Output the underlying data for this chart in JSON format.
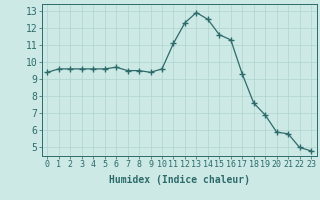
{
  "x": [
    0,
    1,
    2,
    3,
    4,
    5,
    6,
    7,
    8,
    9,
    10,
    11,
    12,
    13,
    14,
    15,
    16,
    17,
    18,
    19,
    20,
    21,
    22,
    23
  ],
  "y": [
    9.4,
    9.6,
    9.6,
    9.6,
    9.6,
    9.6,
    9.7,
    9.5,
    9.5,
    9.4,
    9.6,
    11.1,
    12.3,
    12.9,
    12.5,
    11.6,
    11.3,
    9.3,
    7.6,
    6.9,
    5.9,
    5.8,
    5.0,
    4.8
  ],
  "line_color": "#2d6b6b",
  "marker": "+",
  "marker_size": 4,
  "bg_color": "#cce9e5",
  "grid_color": "#afd4cf",
  "xlabel": "Humidex (Indice chaleur)",
  "ylim": [
    4.5,
    13.4
  ],
  "xlim": [
    -0.5,
    23.5
  ],
  "yticks": [
    5,
    6,
    7,
    8,
    9,
    10,
    11,
    12,
    13
  ],
  "xticks": [
    0,
    1,
    2,
    3,
    4,
    5,
    6,
    7,
    8,
    9,
    10,
    11,
    12,
    13,
    14,
    15,
    16,
    17,
    18,
    19,
    20,
    21,
    22,
    23
  ],
  "tick_color": "#2d6b6b",
  "label_fontsize": 6,
  "axis_fontsize": 7
}
